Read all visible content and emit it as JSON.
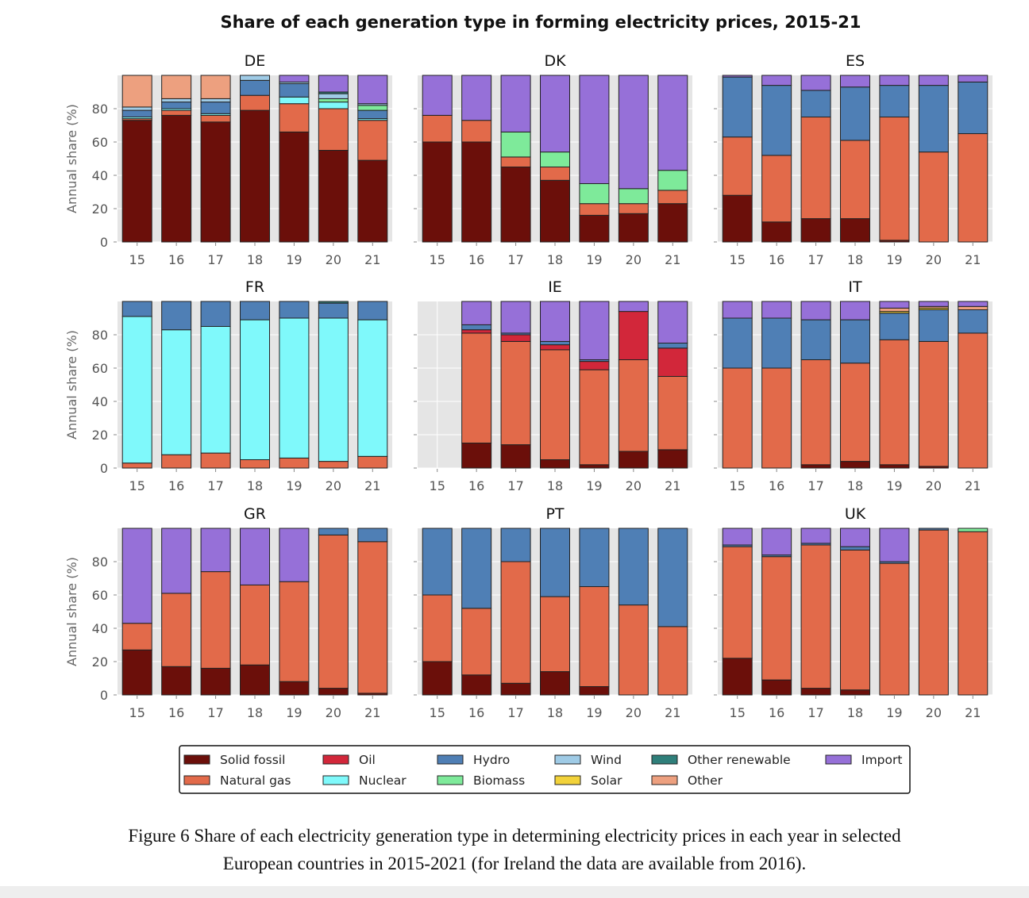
{
  "figure_title": "Share of each generation type in forming electricity prices, 2015-21",
  "caption_line1": "Figure 6 Share of each electricity generation type in determining electricity prices in each year in selected",
  "caption_line2": "European countries in 2015-2021 (for Ireland the data are available from 2016).",
  "colors": {
    "Solid fossil": "#6b0f0a",
    "Natural gas": "#e26a4a",
    "Oil": "#d2273a",
    "Nuclear": "#7ff9fb",
    "Hydro": "#4f7fb5",
    "Biomass": "#7eea9a",
    "Wind": "#9fcbe6",
    "Solar": "#f2d23a",
    "Other renewable": "#2f7f7a",
    "Other": "#eda07f",
    "Import": "#9670d8"
  },
  "chart_data": {
    "type": "bar",
    "stacked": true,
    "title": "Share of each generation type in forming electricity prices, 2015-21",
    "ylabel": "Annual share (%)",
    "ylim": [
      0,
      100
    ],
    "yticks": [
      0,
      20,
      40,
      60,
      80
    ],
    "categories": [
      "15",
      "16",
      "17",
      "18",
      "19",
      "20",
      "21"
    ],
    "grid": true,
    "legend": {
      "placement": "bottom-center",
      "columns": [
        [
          "Solid fossil",
          "Natural gas"
        ],
        [
          "Oil",
          "Nuclear"
        ],
        [
          "Hydro",
          "Biomass"
        ],
        [
          "Wind",
          "Solar"
        ],
        [
          "Other renewable",
          "Other"
        ],
        [
          "Import"
        ]
      ]
    },
    "stack_order": [
      "Solid fossil",
      "Natural gas",
      "Oil",
      "Nuclear",
      "Hydro",
      "Biomass",
      "Wind",
      "Solar",
      "Other renewable",
      "Other",
      "Import"
    ],
    "panels": [
      {
        "country": "DE",
        "bars": [
          {
            "Solid fossil": 73,
            "Natural gas": 1,
            "Nuclear": 1,
            "Wind": 2,
            "Hydro": 4,
            "Other": 19
          },
          {
            "Solid fossil": 76,
            "Natural gas": 3,
            "Nuclear": 1,
            "Wind": 2,
            "Hydro": 4,
            "Other": 14
          },
          {
            "Solid fossil": 72,
            "Natural gas": 4,
            "Nuclear": 1,
            "Wind": 2,
            "Hydro": 7,
            "Other": 14
          },
          {
            "Solid fossil": 79,
            "Natural gas": 9,
            "Wind": 3,
            "Hydro": 9
          },
          {
            "Solid fossil": 66,
            "Natural gas": 17,
            "Nuclear": 4,
            "Wind": 1,
            "Hydro": 8,
            "Import": 4
          },
          {
            "Solid fossil": 55,
            "Natural gas": 25,
            "Nuclear": 4,
            "Wind": 3,
            "Biomass": 2,
            "Other renewable": 1,
            "Import": 10
          },
          {
            "Solid fossil": 49,
            "Natural gas": 24,
            "Nuclear": 1,
            "Wind": 1,
            "Hydro": 5,
            "Biomass": 3,
            "Import": 17
          }
        ]
      },
      {
        "country": "DK",
        "bars": [
          {
            "Solid fossil": 60,
            "Natural gas": 16,
            "Import": 24
          },
          {
            "Solid fossil": 60,
            "Natural gas": 13,
            "Import": 27
          },
          {
            "Solid fossil": 45,
            "Natural gas": 6,
            "Biomass": 15,
            "Import": 34
          },
          {
            "Solid fossil": 37,
            "Natural gas": 8,
            "Biomass": 9,
            "Import": 46
          },
          {
            "Solid fossil": 16,
            "Natural gas": 7,
            "Biomass": 12,
            "Import": 65
          },
          {
            "Solid fossil": 17,
            "Natural gas": 6,
            "Biomass": 9,
            "Import": 68
          },
          {
            "Solid fossil": 23,
            "Natural gas": 8,
            "Biomass": 12,
            "Import": 57
          }
        ]
      },
      {
        "country": "ES",
        "bars": [
          {
            "Solid fossil": 28,
            "Natural gas": 35,
            "Hydro": 36,
            "Import": 1
          },
          {
            "Solid fossil": 12,
            "Natural gas": 40,
            "Hydro": 42,
            "Import": 6
          },
          {
            "Solid fossil": 14,
            "Natural gas": 61,
            "Hydro": 16,
            "Import": 9
          },
          {
            "Solid fossil": 14,
            "Natural gas": 47,
            "Hydro": 32,
            "Import": 7
          },
          {
            "Solid fossil": 1,
            "Natural gas": 74,
            "Hydro": 19,
            "Import": 6
          },
          {
            "Natural gas": 54,
            "Hydro": 40,
            "Import": 6
          },
          {
            "Natural gas": 65,
            "Hydro": 31,
            "Import": 4
          }
        ]
      },
      {
        "country": "FR",
        "bars": [
          {
            "Natural gas": 3,
            "Nuclear": 88,
            "Hydro": 9
          },
          {
            "Natural gas": 8,
            "Nuclear": 75,
            "Hydro": 17
          },
          {
            "Natural gas": 9,
            "Nuclear": 76,
            "Hydro": 15
          },
          {
            "Natural gas": 5,
            "Nuclear": 84,
            "Hydro": 11
          },
          {
            "Natural gas": 6,
            "Nuclear": 84,
            "Hydro": 10
          },
          {
            "Natural gas": 4,
            "Nuclear": 86,
            "Hydro": 9,
            "Other renewable": 1
          },
          {
            "Natural gas": 7,
            "Nuclear": 82,
            "Hydro": 11
          }
        ]
      },
      {
        "country": "IE",
        "bars": [
          {},
          {
            "Solid fossil": 15,
            "Natural gas": 66,
            "Oil": 2,
            "Hydro": 3,
            "Import": 14
          },
          {
            "Solid fossil": 14,
            "Natural gas": 62,
            "Oil": 4,
            "Hydro": 1,
            "Import": 19
          },
          {
            "Solid fossil": 5,
            "Natural gas": 66,
            "Oil": 3,
            "Hydro": 2,
            "Import": 24
          },
          {
            "Solid fossil": 2,
            "Natural gas": 57,
            "Oil": 5,
            "Hydro": 1,
            "Import": 35
          },
          {
            "Solid fossil": 10,
            "Natural gas": 55,
            "Oil": 29,
            "Import": 6
          },
          {
            "Solid fossil": 11,
            "Natural gas": 44,
            "Oil": 17,
            "Hydro": 3,
            "Import": 25
          }
        ]
      },
      {
        "country": "IT",
        "bars": [
          {
            "Natural gas": 60,
            "Hydro": 30,
            "Import": 10
          },
          {
            "Natural gas": 60,
            "Hydro": 30,
            "Import": 10
          },
          {
            "Solid fossil": 2,
            "Natural gas": 63,
            "Hydro": 24,
            "Import": 11
          },
          {
            "Solid fossil": 4,
            "Natural gas": 59,
            "Hydro": 26,
            "Import": 11
          },
          {
            "Solid fossil": 2,
            "Natural gas": 75,
            "Hydro": 16,
            "Solar": 1,
            "Other": 2,
            "Import": 4
          },
          {
            "Solid fossil": 1,
            "Natural gas": 75,
            "Hydro": 19,
            "Solar": 1,
            "Other": 1,
            "Import": 3
          },
          {
            "Natural gas": 81,
            "Hydro": 14,
            "Other": 2,
            "Import": 3
          }
        ]
      },
      {
        "country": "GR",
        "bars": [
          {
            "Solid fossil": 27,
            "Natural gas": 16,
            "Import": 57
          },
          {
            "Solid fossil": 17,
            "Natural gas": 44,
            "Import": 39
          },
          {
            "Solid fossil": 16,
            "Natural gas": 58,
            "Import": 26
          },
          {
            "Solid fossil": 18,
            "Natural gas": 48,
            "Import": 34
          },
          {
            "Solid fossil": 8,
            "Natural gas": 60,
            "Import": 32
          },
          {
            "Solid fossil": 4,
            "Natural gas": 92,
            "Hydro": 4
          },
          {
            "Solid fossil": 1,
            "Natural gas": 91,
            "Hydro": 8
          }
        ]
      },
      {
        "country": "PT",
        "bars": [
          {
            "Solid fossil": 20,
            "Natural gas": 40,
            "Hydro": 40
          },
          {
            "Solid fossil": 12,
            "Natural gas": 40,
            "Hydro": 48
          },
          {
            "Solid fossil": 7,
            "Natural gas": 73,
            "Hydro": 20
          },
          {
            "Solid fossil": 14,
            "Natural gas": 45,
            "Hydro": 41
          },
          {
            "Solid fossil": 5,
            "Natural gas": 60,
            "Hydro": 35
          },
          {
            "Natural gas": 54,
            "Hydro": 46
          },
          {
            "Natural gas": 41,
            "Hydro": 59
          }
        ]
      },
      {
        "country": "UK",
        "bars": [
          {
            "Solid fossil": 22,
            "Natural gas": 67,
            "Hydro": 1,
            "Import": 10
          },
          {
            "Solid fossil": 9,
            "Natural gas": 74,
            "Hydro": 1,
            "Import": 16
          },
          {
            "Solid fossil": 4,
            "Natural gas": 86,
            "Hydro": 1,
            "Import": 9
          },
          {
            "Solid fossil": 3,
            "Natural gas": 84,
            "Hydro": 2,
            "Import": 11
          },
          {
            "Natural gas": 79,
            "Hydro": 1,
            "Import": 20
          },
          {
            "Natural gas": 99,
            "Hydro": 1
          },
          {
            "Natural gas": 98,
            "Biomass": 2
          }
        ]
      }
    ]
  }
}
